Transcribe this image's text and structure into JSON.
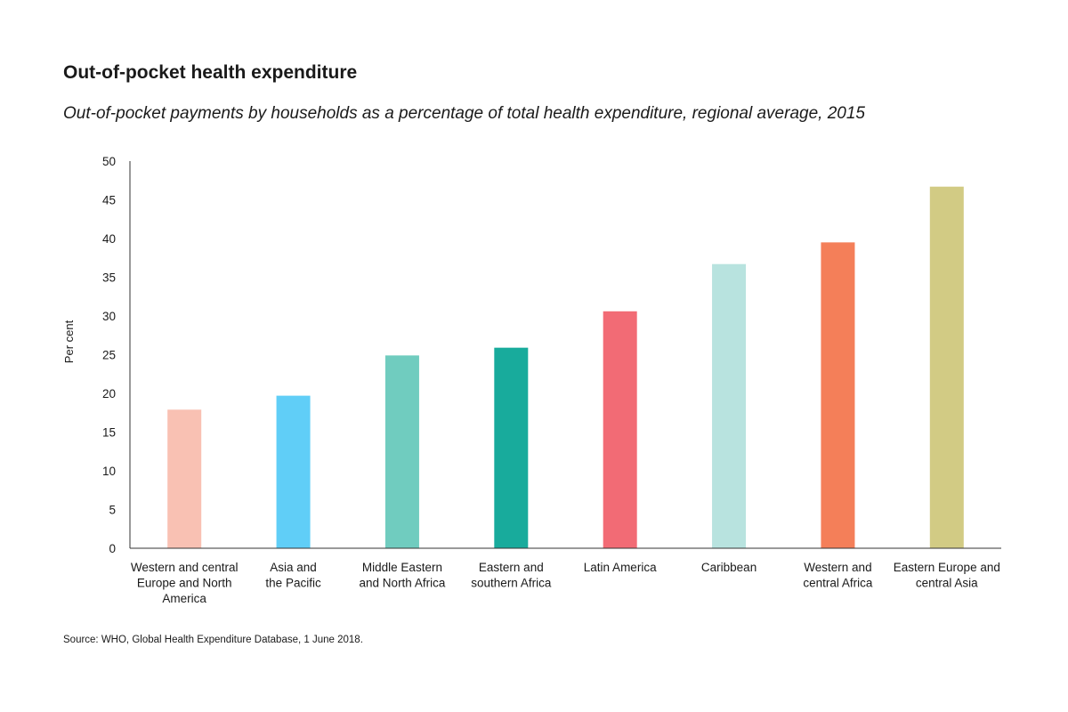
{
  "header": {
    "title": "Out-of-pocket health expenditure",
    "subtitle": "Out-of-pocket payments by households as a percentage of total health expenditure, regional average, 2015"
  },
  "footer": {
    "source": "Source: WHO, Global Health Expenditure Database, 1 June 2018."
  },
  "chart_data": {
    "type": "bar",
    "title": "Out-of-pocket health expenditure",
    "subtitle": "Out-of-pocket payments by households as a percentage of total health expenditure, regional average, 2015",
    "xlabel": "",
    "ylabel": "Per cent",
    "ylim": [
      0,
      50
    ],
    "yticks": [
      0,
      5,
      10,
      15,
      20,
      25,
      30,
      35,
      40,
      45,
      50
    ],
    "grid": false,
    "categories": [
      "Western and central Europe and North America",
      "Asia and the Pacific",
      "Middle Eastern and North Africa",
      "Eastern and southern Africa",
      "Latin America",
      "Caribbean",
      "Western and central Africa",
      "Eastern Europe and central Asia"
    ],
    "category_label_lines": [
      [
        "Western and central",
        "Europe and North",
        "America"
      ],
      [
        "Asia and",
        "the Pacific"
      ],
      [
        "Middle Eastern",
        "and North Africa"
      ],
      [
        "Eastern and",
        "southern Africa"
      ],
      [
        "Latin America"
      ],
      [
        "Caribbean"
      ],
      [
        "Western and",
        "central Africa"
      ],
      [
        "Eastern Europe and",
        "central Asia"
      ]
    ],
    "values": [
      17.9,
      19.7,
      24.9,
      25.9,
      30.6,
      36.7,
      39.5,
      46.7
    ],
    "colors": [
      "#f9c1b3",
      "#60cef7",
      "#70ccbf",
      "#18ab9c",
      "#f26b75",
      "#b8e3df",
      "#f47f59",
      "#d2cb84"
    ]
  }
}
